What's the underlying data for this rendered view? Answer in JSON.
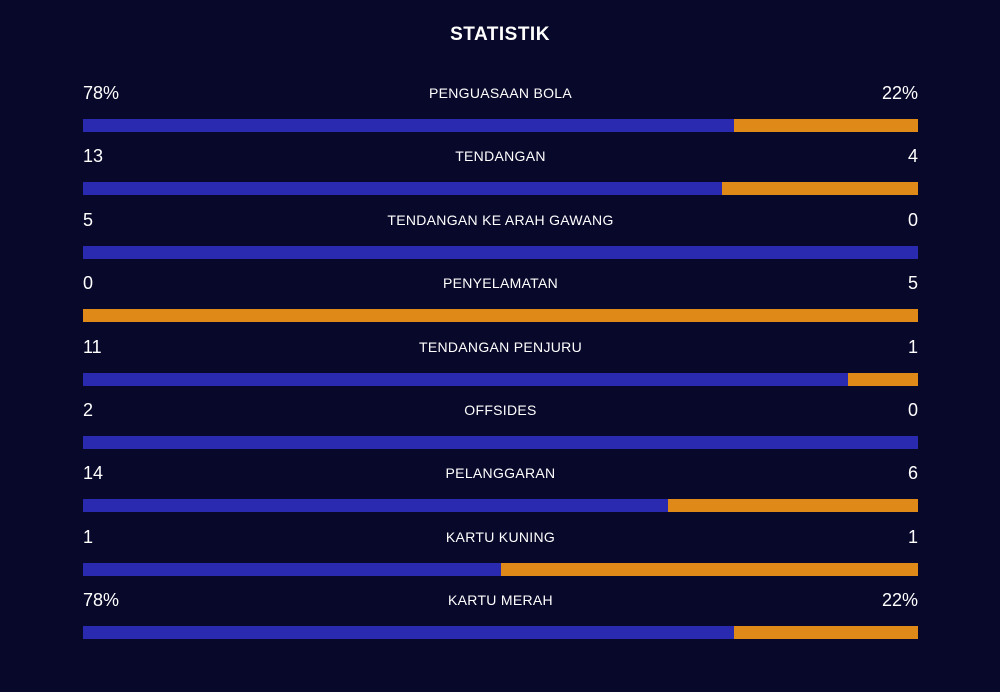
{
  "title": "STATISTIK",
  "colors": {
    "background": "#08082a",
    "home": "#2a2ab0",
    "away": "#df8a18"
  },
  "stats": [
    {
      "label": "PENGUASAAN BOLA",
      "left": "78%",
      "right": "22%",
      "left_share": 0.78
    },
    {
      "label": "TENDANGAN",
      "left": "13",
      "right": "4",
      "left_share": 0.7647
    },
    {
      "label": "TENDANGAN KE ARAH GAWANG",
      "left": "5",
      "right": "0",
      "left_share": 1.0
    },
    {
      "label": "PENYELAMATAN",
      "left": "0",
      "right": "5",
      "left_share": 0.0
    },
    {
      "label": "TENDANGAN PENJURU",
      "left": "11",
      "right": "1",
      "left_share": 0.9167
    },
    {
      "label": "OFFSIDES",
      "left": "2",
      "right": "0",
      "left_share": 1.0
    },
    {
      "label": "PELANGGARAN",
      "left": "14",
      "right": "6",
      "left_share": 0.7
    },
    {
      "label": "KARTU KUNING",
      "left": "1",
      "right": "1",
      "left_share": 0.5
    },
    {
      "label": "KARTU MERAH",
      "left": "78%",
      "right": "22%",
      "left_share": 0.78
    }
  ]
}
